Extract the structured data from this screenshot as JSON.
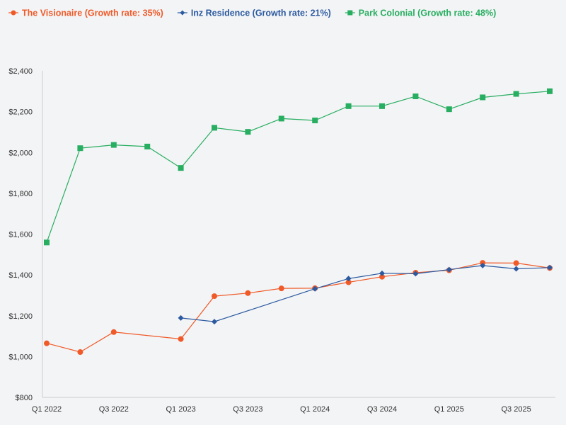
{
  "chart_data": {
    "type": "line",
    "title": "",
    "xlabel": "",
    "ylabel": "",
    "ylim": [
      800,
      2400
    ],
    "grid": false,
    "legend_position": "top-left",
    "x_tick_labels": [
      "Q1 2022",
      "Q3 2022",
      "Q1 2023",
      "Q3 2023",
      "Q1 2024",
      "Q3 2024",
      "Q1 2025",
      "Q3 2025"
    ],
    "y_tick_labels": [
      "$800",
      "$1,000",
      "$1,200",
      "$1,400",
      "$1,600",
      "$1,800",
      "$2,000",
      "$2,200",
      "$2,400"
    ],
    "y_ticks": [
      800,
      1000,
      1200,
      1400,
      1600,
      1800,
      2000,
      2200,
      2400
    ],
    "categories": [
      "Q1 2022",
      "Q2 2022",
      "Q3 2022",
      "Q4 2022",
      "Q1 2023",
      "Q2 2023",
      "Q3 2023",
      "Q4 2023",
      "Q1 2024",
      "Q2 2024",
      "Q3 2024",
      "Q4 2024",
      "Q1 2025",
      "Q2 2025",
      "Q3 2025",
      "Q4 2025"
    ],
    "series": [
      {
        "name": "The Visionaire (Growth rate: 35%)",
        "color": "#f05a28",
        "marker": "circle",
        "values": [
          1065,
          1022,
          1120,
          null,
          1086,
          1296,
          1311,
          1334,
          1335,
          1364,
          1391,
          1411,
          1423,
          1459,
          1458,
          1434
        ]
      },
      {
        "name": "Inz Residence (Growth rate: 21%)",
        "color": "#2c5aa0",
        "marker": "diamond",
        "values": [
          null,
          null,
          null,
          null,
          1189,
          1171,
          null,
          null,
          1332,
          1382,
          1408,
          1406,
          1426,
          1446,
          1430,
          1436
        ]
      },
      {
        "name": "Park Colonial (Growth rate: 48%)",
        "color": "#27ae60",
        "marker": "square",
        "values": [
          1559,
          2021,
          2037,
          2029,
          1924,
          2121,
          2101,
          2166,
          2157,
          2227,
          2227,
          2275,
          2212,
          2270,
          2287,
          2300
        ]
      }
    ]
  }
}
